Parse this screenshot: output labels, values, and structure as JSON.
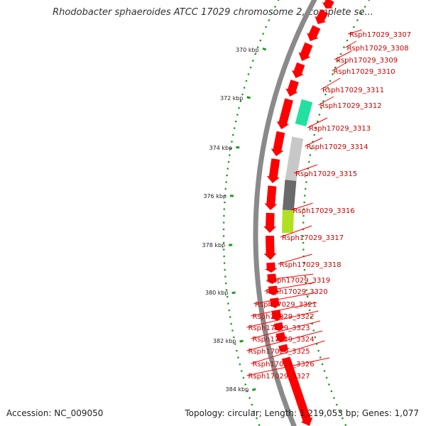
{
  "title": "Rhodobacter sphaeroides ATCC 17029 chromosome 2, complete se...",
  "accession": "Accession: NC_009050",
  "topology": "Topology: circular; Length: 1,219,053 bp; Genes: 1,077",
  "colors": {
    "backbone": "#8a8a8a",
    "gene_cds": "#ff0000",
    "label": "#cc0000",
    "label_line": "#ff0000",
    "dot_left": "#1e9a1e",
    "dot_right": "#1e9a1e",
    "feature_teal": "#22e0a0",
    "feature_lightgray": "#c8c8c8",
    "feature_darkgray": "#6a6a6a",
    "feature_yellowgreen": "#b0e020",
    "feature_olive": "#80a010"
  },
  "axis": {
    "unit_label": "kbp",
    "ticks": [
      {
        "pos_kbp": 370,
        "label": "370 kbp"
      },
      {
        "pos_kbp": 372,
        "label": "372 kbp"
      },
      {
        "pos_kbp": 374,
        "label": "374 kbp"
      },
      {
        "pos_kbp": 376,
        "label": "376 kbp"
      },
      {
        "pos_kbp": 378,
        "label": "378 kbp"
      },
      {
        "pos_kbp": 380,
        "label": "380 kbp"
      },
      {
        "pos_kbp": 382,
        "label": "382 kbp"
      },
      {
        "pos_kbp": 384,
        "label": "384 kbp"
      }
    ]
  },
  "gene_labels": [
    "Rsph17029_3307",
    "Rsph17029_3308",
    "Rsph17029_3309",
    "Rsph17029_3310",
    "Rsph17029_3311",
    "Rsph17029_3312",
    "Rsph17029_3313",
    "Rsph17029_3314",
    "Rsph17029_3315",
    "Rsph17029_3316",
    "Rsph17029_3317",
    "Rsph17029_3318",
    "Rsph17029_3319",
    "Rsph17029_3320",
    "Rsph17029_3321",
    "Rsph17029_3322",
    "Rsph17029_3323",
    "Rsph17029_3324",
    "Rsph17029_3325",
    "Rsph17029_3326",
    "Rsph17029_3327"
  ]
}
